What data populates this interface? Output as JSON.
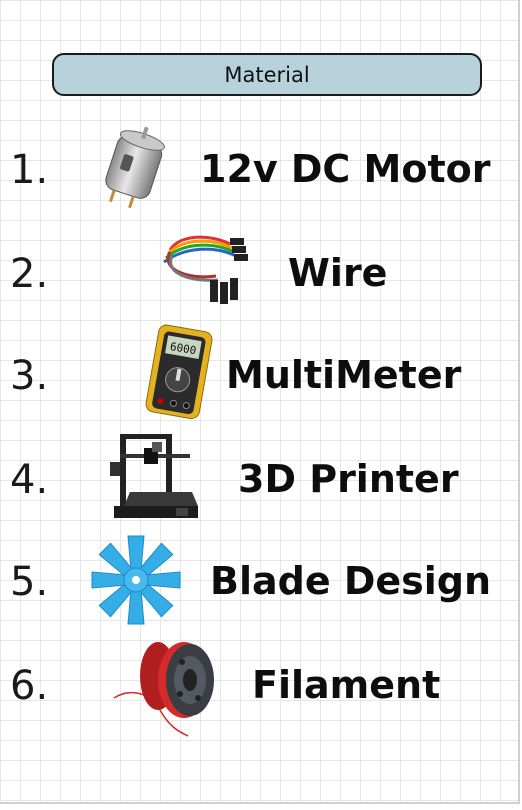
{
  "header": {
    "title": "Material"
  },
  "items": [
    {
      "number": "1.",
      "label": "12v DC Motor",
      "icon": "dc-motor-icon"
    },
    {
      "number": "2.",
      "label": "Wire",
      "icon": "jumper-wire-icon"
    },
    {
      "number": "3.",
      "label": "MultiMeter",
      "icon": "multimeter-icon"
    },
    {
      "number": "4.",
      "label": "3D Printer",
      "icon": "3d-printer-icon"
    },
    {
      "number": "5.",
      "label": "Blade Design",
      "icon": "fan-blade-icon"
    },
    {
      "number": "6.",
      "label": "Filament",
      "icon": "filament-spool-icon"
    }
  ],
  "colors": {
    "header_fill": "#b8d2dc",
    "blade_blue": "#35aee8",
    "filament_red": "#d42a2a",
    "multimeter_yellow": "#e5b21f"
  }
}
